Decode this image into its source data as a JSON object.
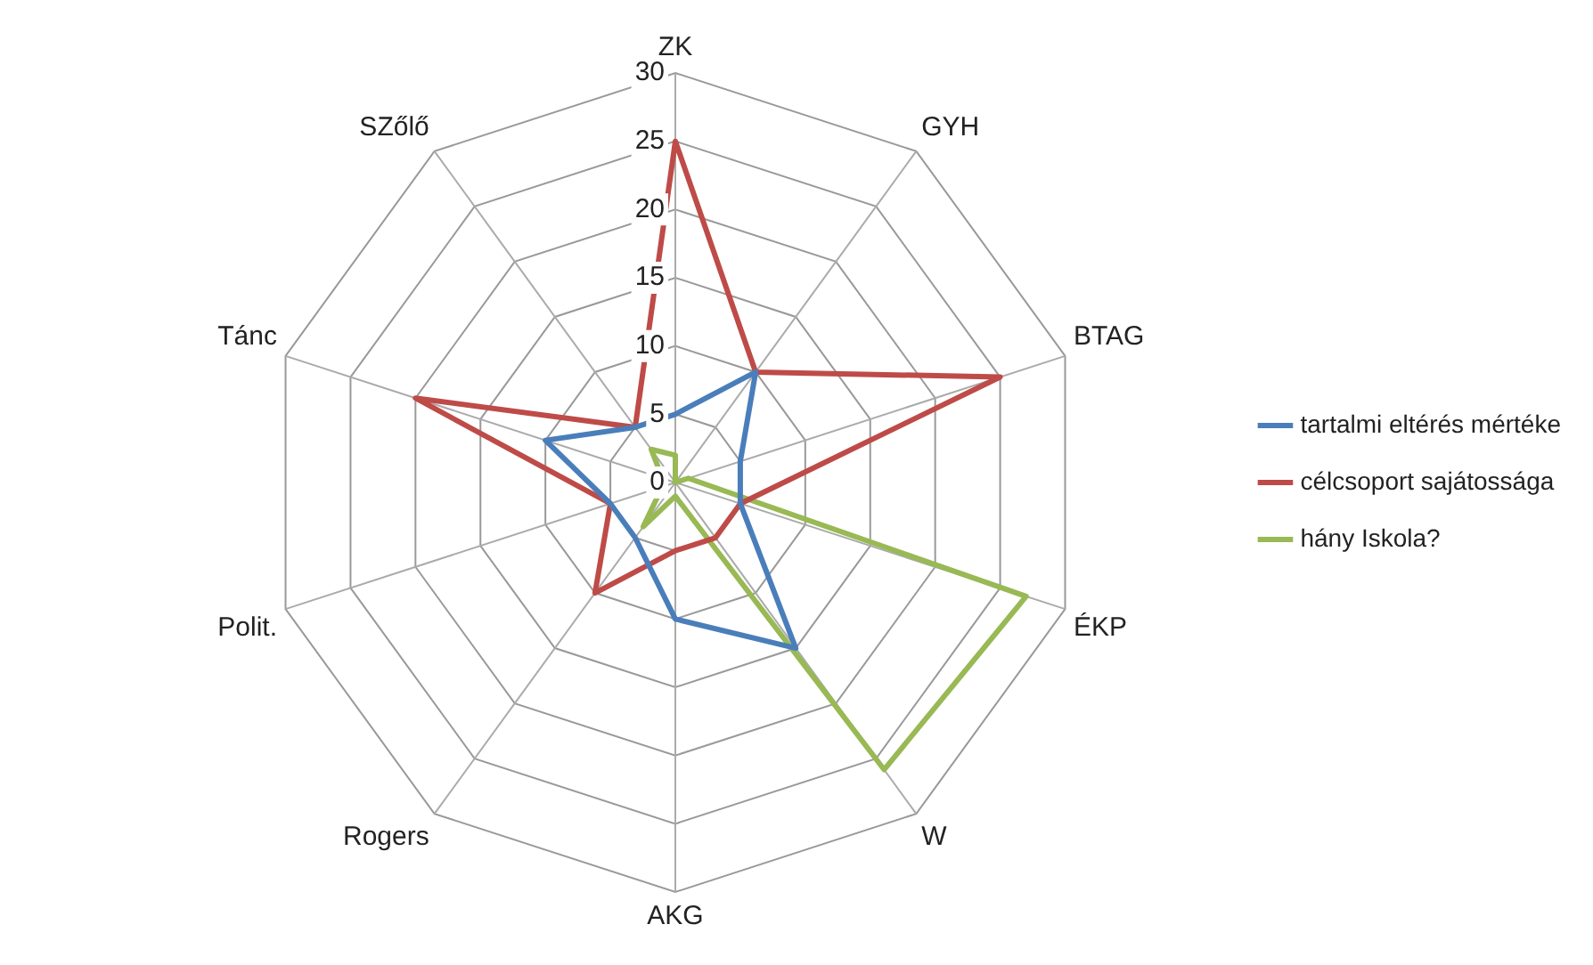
{
  "chart_data": {
    "type": "radar",
    "categories": [
      "ZK",
      "GYH",
      "BTAG",
      "ÉKP",
      "W",
      "AKG",
      "Rogers",
      "Polit.",
      "Tánc",
      "SZőlő"
    ],
    "series": [
      {
        "name": "tartalmi eltérés mértéke",
        "color": "#4a7ebb",
        "values": [
          5,
          10,
          5,
          5,
          15,
          10,
          5,
          5,
          10,
          5
        ]
      },
      {
        "name": "célcsoport sajátossága",
        "color": "#be4b48",
        "values": [
          25,
          10,
          25,
          5,
          5,
          5,
          10,
          5,
          20,
          5
        ]
      },
      {
        "name": "hány Iskola?",
        "color": "#98b954",
        "values": [
          2,
          0,
          1,
          27,
          26,
          1,
          4,
          1,
          1,
          3
        ]
      }
    ],
    "ylim": [
      0,
      30
    ],
    "yticks": [
      0,
      5,
      10,
      15,
      20,
      25,
      30
    ],
    "grid": true,
    "legend": "right",
    "marker": "none"
  }
}
